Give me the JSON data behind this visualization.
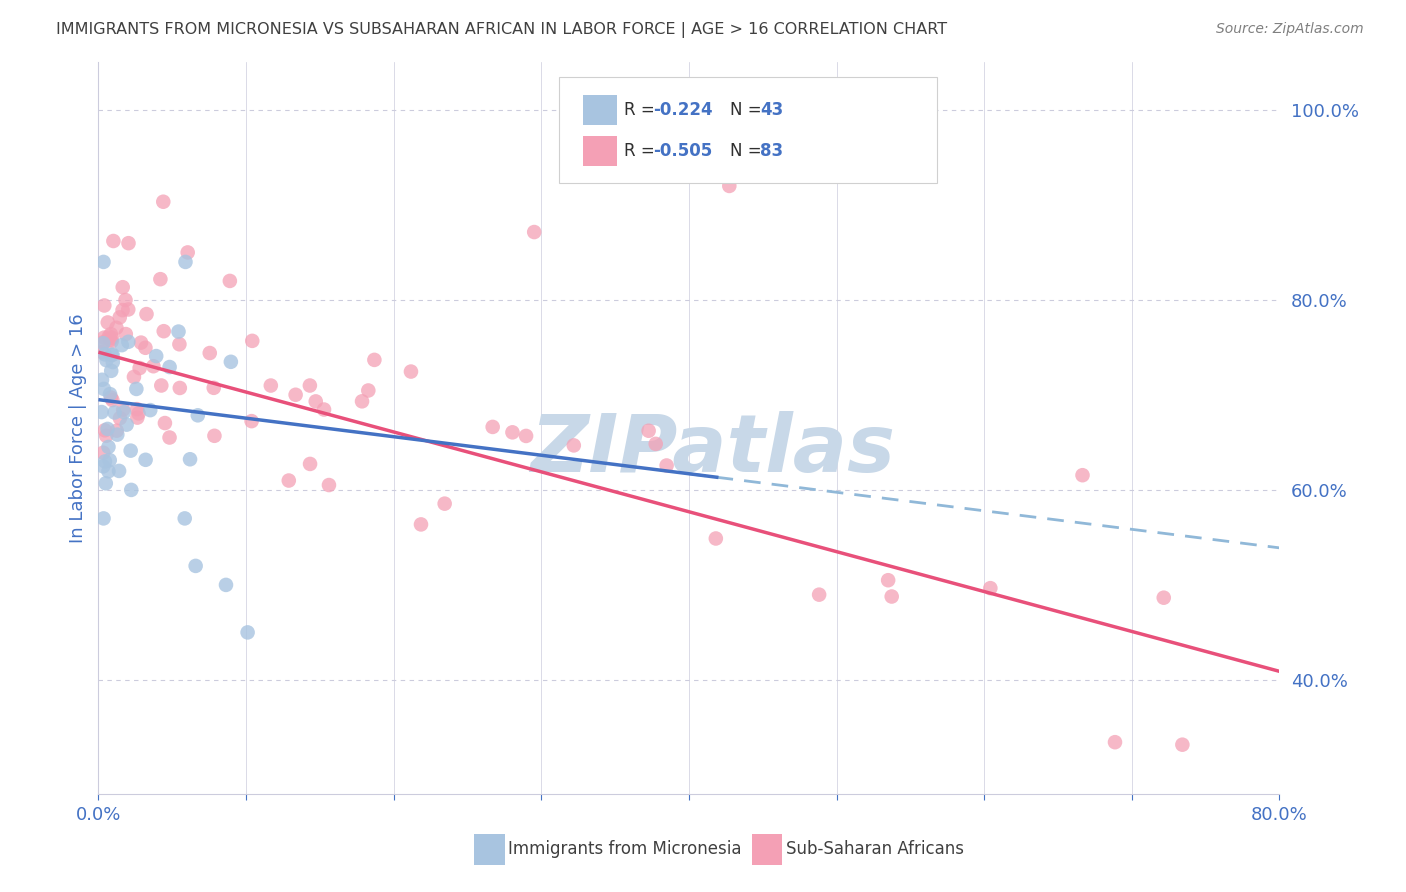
{
  "title": "IMMIGRANTS FROM MICRONESIA VS SUBSAHARAN AFRICAN IN LABOR FORCE | AGE > 16 CORRELATION CHART",
  "source": "Source: ZipAtlas.com",
  "ylabel": "In Labor Force | Age > 16",
  "xlim": [
    0.0,
    0.8
  ],
  "ylim": [
    0.28,
    1.05
  ],
  "watermark": "ZIPatlas",
  "micronesia_color": "#a8c4e0",
  "subsaharan_color": "#f4a0b5",
  "blue_line_color": "#4472c4",
  "pink_line_color": "#e8507a",
  "dashed_line_color": "#90b8d8",
  "bg_color": "#ffffff",
  "grid_color": "#ccccdd",
  "title_color": "#404040",
  "source_color": "#808080",
  "watermark_color": "#c8d8e8",
  "axis_label_color": "#4472c4",
  "legend_r1": "-0.224",
  "legend_n1": "43",
  "legend_r2": "-0.505",
  "legend_n2": "83",
  "blue_intercept": 0.695,
  "blue_slope": -0.195,
  "pink_intercept": 0.745,
  "pink_slope": -0.42
}
